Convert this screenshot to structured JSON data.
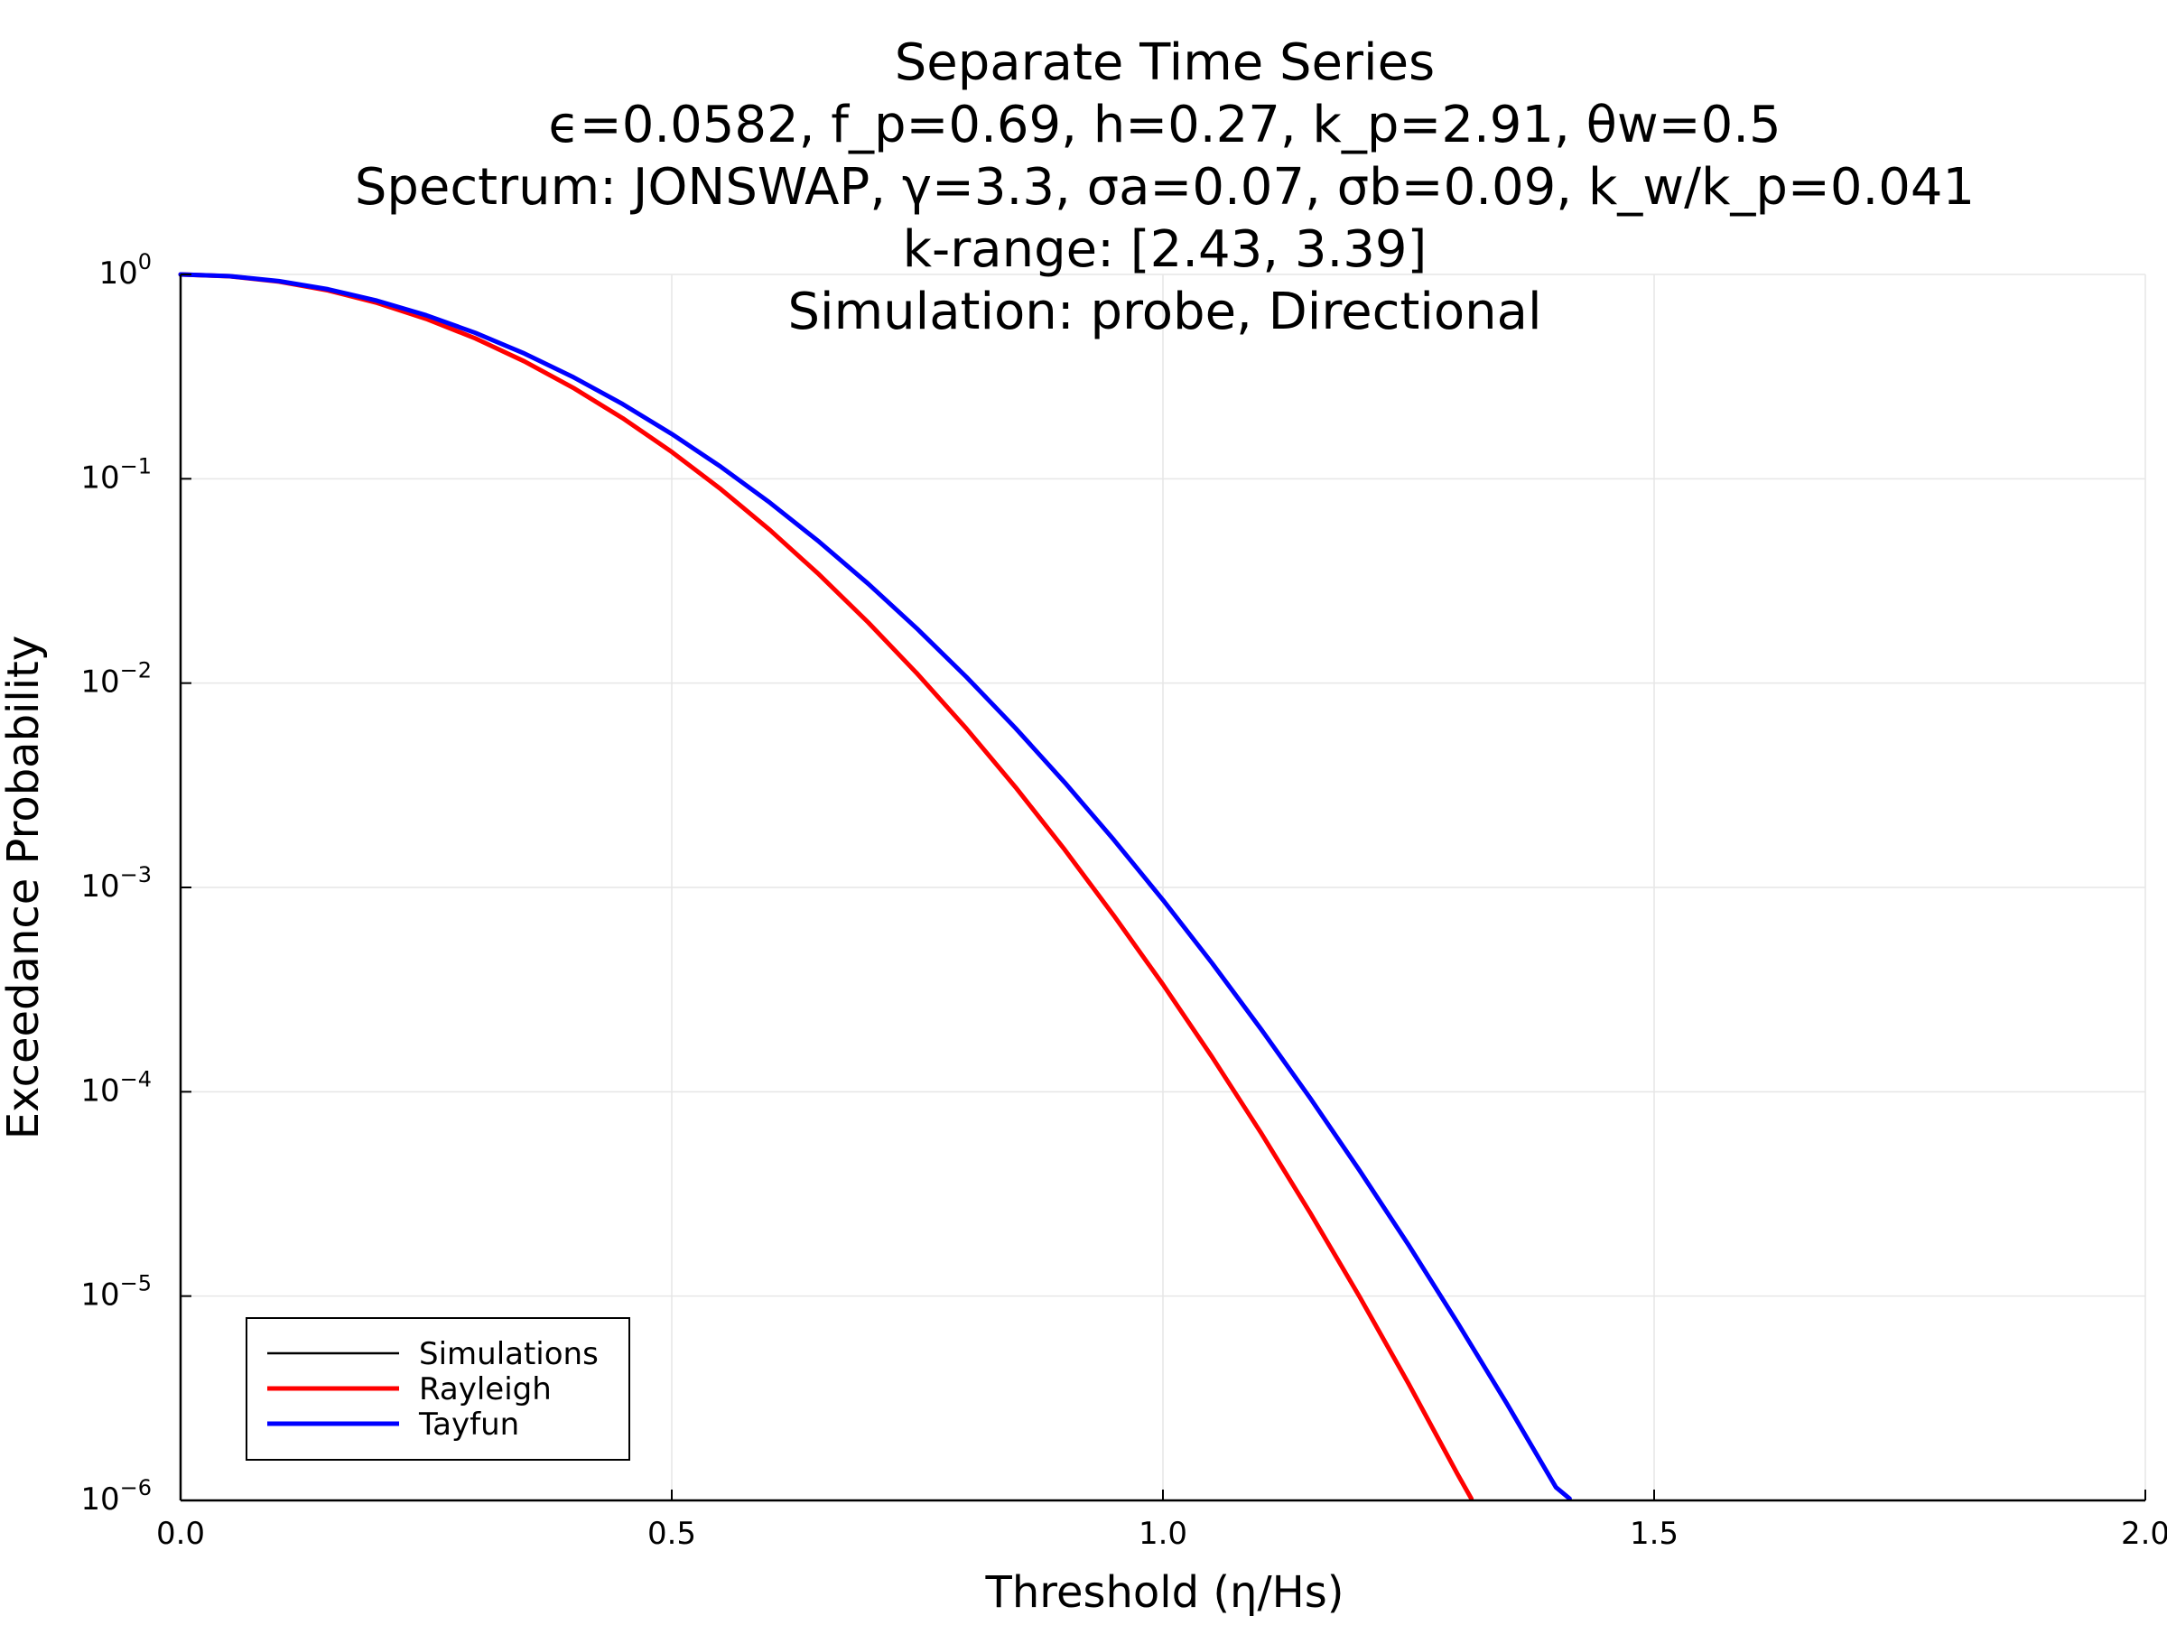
{
  "chart_data": {
    "type": "line",
    "title_lines": [
      "Separate Time Series",
      "ϵ=0.0582, f_p=0.69, h=0.27, k_p=2.91, θw=0.5",
      "Spectrum: JONSWAP, γ=3.3, σa=0.07, σb=0.09, k_w/k_p=0.041",
      "k-range: [2.43, 3.39]",
      "Simulation: probe, Directional"
    ],
    "xlabel": "Threshold (η/Hs)",
    "ylabel": "Exceedance Probability",
    "xlim": [
      0,
      2
    ],
    "ylim": [
      1e-06,
      1
    ],
    "yscale": "log",
    "grid": true,
    "legend_position": "bottom-left",
    "x_ticks": [
      {
        "value": 0.0,
        "label": "0.0"
      },
      {
        "value": 0.5,
        "label": "0.5"
      },
      {
        "value": 1.0,
        "label": "1.0"
      },
      {
        "value": 1.5,
        "label": "1.5"
      },
      {
        "value": 2.0,
        "label": "2.0"
      }
    ],
    "y_ticks": [
      {
        "value": 1,
        "base": "10",
        "exp": "0"
      },
      {
        "value": 0.1,
        "base": "10",
        "exp": "−1"
      },
      {
        "value": 0.01,
        "base": "10",
        "exp": "−2"
      },
      {
        "value": 0.001,
        "base": "10",
        "exp": "−3"
      },
      {
        "value": 0.0001,
        "base": "10",
        "exp": "−4"
      },
      {
        "value": 1e-05,
        "base": "10",
        "exp": "−5"
      },
      {
        "value": 1e-06,
        "base": "10",
        "exp": "−6"
      }
    ],
    "series": [
      {
        "name": "Simulations",
        "color": "#000000",
        "x": [],
        "y": []
      },
      {
        "name": "Rayleigh",
        "color": "#ff0000",
        "x": [
          0,
          0.05,
          0.1,
          0.15,
          0.2,
          0.25,
          0.3,
          0.35,
          0.4,
          0.45,
          0.5,
          0.55,
          0.6,
          0.65,
          0.7,
          0.75,
          0.8,
          0.85,
          0.9,
          0.95,
          1.0,
          1.05,
          1.1,
          1.15,
          1.2,
          1.25,
          1.3,
          1.314
        ],
        "y": [
          1,
          0.9802,
          0.9231,
          0.8353,
          0.7261,
          0.6065,
          0.4868,
          0.3753,
          0.278,
          0.1979,
          0.1353,
          0.0889,
          0.0561,
          0.034,
          0.0198,
          0.0111,
          0.00598,
          0.00309,
          0.00153,
          0.000728,
          0.000335,
          0.000148,
          6.27e-05,
          2.55e-05,
          9.96e-06,
          3.73e-06,
          1.34e-06,
          1.02e-06
        ]
      },
      {
        "name": "Tayfun",
        "color": "#0000ff",
        "x": [
          0,
          0.05,
          0.1,
          0.15,
          0.2,
          0.25,
          0.3,
          0.35,
          0.4,
          0.45,
          0.5,
          0.55,
          0.6,
          0.65,
          0.7,
          0.75,
          0.8,
          0.85,
          0.9,
          0.95,
          1.0,
          1.05,
          1.1,
          1.15,
          1.2,
          1.25,
          1.3,
          1.35,
          1.4,
          1.414
        ],
        "y": [
          1,
          0.9813,
          0.9279,
          0.8461,
          0.7441,
          0.6316,
          0.5178,
          0.4101,
          0.3138,
          0.232,
          0.1657,
          0.1144,
          0.0763,
          0.0492,
          0.0306,
          0.0184,
          0.0107,
          0.00601,
          0.00326,
          0.00171,
          0.000868,
          0.000426,
          0.000202,
          9.29e-05,
          4.13e-05,
          1.78e-05,
          7.39e-06,
          2.98e-06,
          1.16e-06,
          1.02e-06
        ]
      }
    ]
  }
}
